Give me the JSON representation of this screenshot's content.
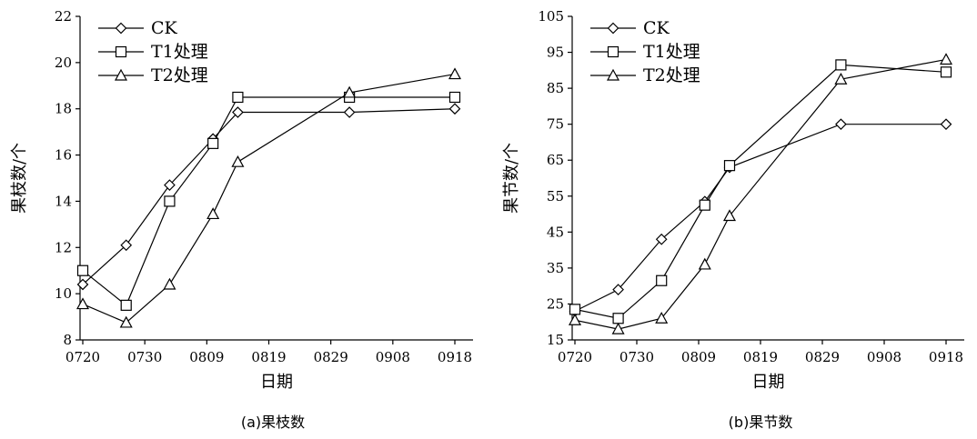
{
  "chart_data": [
    {
      "type": "line",
      "caption": "(a)果枝数",
      "xlabel": "日期",
      "ylabel": "果枝数/个",
      "ylim": [
        8,
        22
      ],
      "yticks": [
        8,
        10,
        12,
        14,
        16,
        18,
        20,
        22
      ],
      "xticks": [
        "0720",
        "0730",
        "0809",
        "0819",
        "0829",
        "0908",
        "0918"
      ],
      "legend_position": "top-left",
      "series": [
        {
          "name": "CK",
          "marker": "diamond",
          "x": [
            "0720",
            "0727",
            "0803",
            "0810",
            "0814",
            "0901",
            "0918"
          ],
          "values": [
            10.4,
            12.1,
            14.7,
            16.7,
            17.85,
            17.85,
            18.0
          ]
        },
        {
          "name": "T1处理",
          "marker": "square",
          "x": [
            "0720",
            "0727",
            "0803",
            "0810",
            "0814",
            "0901",
            "0918"
          ],
          "values": [
            11.0,
            9.5,
            14.0,
            16.5,
            18.5,
            18.5,
            18.5
          ]
        },
        {
          "name": "T2处理",
          "marker": "triangle",
          "x": [
            "0720",
            "0727",
            "0803",
            "0810",
            "0814",
            "0901",
            "0918"
          ],
          "values": [
            9.55,
            8.75,
            10.4,
            13.45,
            15.7,
            18.7,
            19.5
          ]
        }
      ]
    },
    {
      "type": "line",
      "caption": "(b)果节数",
      "xlabel": "日期",
      "ylabel": "果节数/个",
      "ylim": [
        15,
        105
      ],
      "yticks": [
        15,
        25,
        35,
        45,
        55,
        65,
        75,
        85,
        95,
        105
      ],
      "xticks": [
        "0720",
        "0730",
        "0809",
        "0819",
        "0829",
        "0908",
        "0918"
      ],
      "legend_position": "top-left",
      "series": [
        {
          "name": "CK",
          "marker": "diamond",
          "x": [
            "0720",
            "0727",
            "0803",
            "0810",
            "0814",
            "0901",
            "0918"
          ],
          "values": [
            23,
            29,
            43,
            53.5,
            63,
            75,
            75
          ]
        },
        {
          "name": "T1处理",
          "marker": "square",
          "x": [
            "0720",
            "0727",
            "0803",
            "0810",
            "0814",
            "0901",
            "0918"
          ],
          "values": [
            23.5,
            21,
            31.5,
            52.5,
            63.5,
            91.5,
            89.5
          ]
        },
        {
          "name": "T2处理",
          "marker": "triangle",
          "x": [
            "0720",
            "0727",
            "0803",
            "0810",
            "0814",
            "0901",
            "0918"
          ],
          "values": [
            20.5,
            18,
            21,
            36,
            49.5,
            87.5,
            93
          ]
        }
      ]
    }
  ]
}
